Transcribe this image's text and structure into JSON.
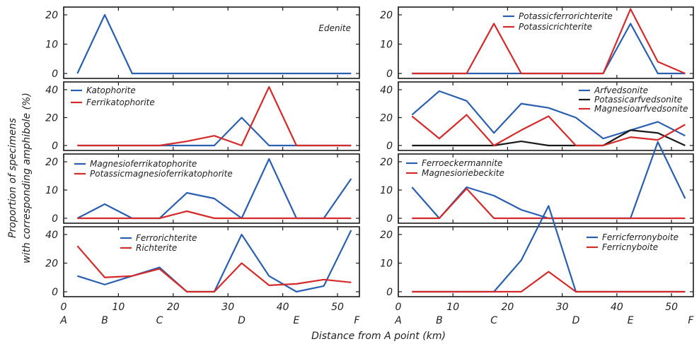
{
  "figure": {
    "ylabel_line1": "Proportion of specimens",
    "ylabel_line2": "with corresponding amphibole (%)",
    "xlabel": "Distance from A point (km)"
  },
  "chart_data": [
    {
      "type": "line",
      "id": "edenite",
      "column": 0,
      "row": 0,
      "x": [
        2.5,
        7.5,
        12.5,
        17.5,
        22.5,
        27.5,
        32.5,
        37.5,
        42.5,
        47.5,
        52.5
      ],
      "xlim": [
        0,
        54
      ],
      "ylim": [
        0,
        20
      ],
      "yticks": [
        0,
        10,
        20
      ],
      "xticks": [
        0,
        10,
        20,
        30,
        40,
        50
      ],
      "point_labels": [
        "A",
        "B",
        "C",
        "D",
        "E",
        "F"
      ],
      "series": [
        {
          "name": "Edenite",
          "color": "#2a5fb0",
          "values": [
            0,
            20,
            0,
            0,
            0,
            0,
            0,
            0,
            0,
            0,
            0
          ]
        }
      ]
    },
    {
      "type": "line",
      "id": "katophorite",
      "column": 0,
      "row": 1,
      "x": [
        2.5,
        7.5,
        12.5,
        17.5,
        22.5,
        27.5,
        32.5,
        37.5,
        42.5,
        47.5,
        52.5
      ],
      "xlim": [
        0,
        54
      ],
      "ylim": [
        0,
        40
      ],
      "yticks": [
        0,
        20,
        40
      ],
      "series": [
        {
          "name": "Katophorite",
          "color": "#2a5fb0",
          "values": [
            0,
            0,
            0,
            0,
            0,
            0,
            20,
            0,
            0,
            0,
            0
          ]
        },
        {
          "name": "Ferrikatophorite",
          "color": "#d42a2a",
          "values": [
            0,
            0,
            0,
            0,
            3,
            7,
            0,
            42,
            0,
            0,
            0
          ]
        }
      ]
    },
    {
      "type": "line",
      "id": "magnesioferrikatophorite",
      "column": 0,
      "row": 2,
      "x": [
        2.5,
        7.5,
        12.5,
        17.5,
        22.5,
        27.5,
        32.5,
        37.5,
        42.5,
        47.5,
        52.5
      ],
      "xlim": [
        0,
        54
      ],
      "ylim": [
        0,
        20
      ],
      "yticks": [
        0,
        10,
        20
      ],
      "series": [
        {
          "name": "Magnesioferrikatophorite",
          "color": "#2a5fb0",
          "values": [
            0,
            5,
            0,
            0,
            9,
            7,
            0,
            21,
            0,
            0,
            14
          ]
        },
        {
          "name": "Potassicmagnesioferrikatophorite",
          "color": "#d42a2a",
          "values": [
            0,
            0,
            0,
            0,
            2.5,
            0,
            0,
            0,
            0,
            0,
            0
          ]
        }
      ]
    },
    {
      "type": "line",
      "id": "ferrorichterite",
      "column": 0,
      "row": 3,
      "x": [
        2.5,
        7.5,
        12.5,
        17.5,
        22.5,
        27.5,
        32.5,
        37.5,
        42.5,
        47.5,
        52.5
      ],
      "xlim": [
        0,
        54
      ],
      "ylim": [
        0,
        40
      ],
      "yticks": [
        0,
        20,
        40
      ],
      "series": [
        {
          "name": "Ferrorichterite",
          "color": "#2a5fb0",
          "values": [
            11,
            5,
            11,
            17,
            0,
            0,
            40,
            11,
            0,
            4,
            43
          ]
        },
        {
          "name": "Richterite",
          "color": "#d42a2a",
          "values": [
            32,
            10,
            11,
            16,
            0,
            0,
            20,
            4.5,
            5.5,
            8.5,
            6.5
          ]
        }
      ]
    },
    {
      "type": "line",
      "id": "potassicferrorichterite",
      "column": 1,
      "row": 0,
      "x": [
        2.5,
        7.5,
        12.5,
        17.5,
        22.5,
        27.5,
        32.5,
        37.5,
        42.5,
        47.5,
        52.5
      ],
      "xlim": [
        0,
        54
      ],
      "ylim": [
        0,
        20
      ],
      "yticks": [
        0,
        10,
        20
      ],
      "series": [
        {
          "name": "Potassicferrorichterite",
          "color": "#2a5fb0",
          "values": [
            0,
            0,
            0,
            0,
            0,
            0,
            0,
            0,
            17,
            0,
            0
          ]
        },
        {
          "name": "Potassicrichterite",
          "color": "#d42a2a",
          "values": [
            0,
            0,
            0,
            17,
            0,
            0,
            0,
            0,
            22,
            4,
            0
          ]
        }
      ]
    },
    {
      "type": "line",
      "id": "arfvedsonite",
      "column": 1,
      "row": 1,
      "x": [
        2.5,
        7.5,
        12.5,
        17.5,
        22.5,
        27.5,
        32.5,
        37.5,
        42.5,
        47.5,
        52.5
      ],
      "xlim": [
        0,
        54
      ],
      "ylim": [
        0,
        40
      ],
      "yticks": [
        0,
        20,
        40
      ],
      "series": [
        {
          "name": "Arfvedsonite",
          "color": "#2a5fb0",
          "values": [
            22,
            39,
            32,
            9,
            30,
            27,
            20,
            5,
            11,
            17,
            7
          ]
        },
        {
          "name": "Potassicarfvedsonite",
          "color": "#1a1a1a",
          "values": [
            0,
            0,
            0,
            0,
            3,
            0,
            0,
            0,
            11,
            9,
            0
          ]
        },
        {
          "name": "Magnesioarfvedsonite",
          "color": "#d42a2a",
          "values": [
            21,
            5,
            22,
            0,
            11,
            21,
            0,
            0,
            6,
            4,
            15
          ]
        }
      ]
    },
    {
      "type": "line",
      "id": "ferroeckermannite",
      "column": 1,
      "row": 2,
      "x": [
        2.5,
        7.5,
        12.5,
        17.5,
        22.5,
        27.5,
        32.5,
        37.5,
        42.5,
        47.5,
        52.5
      ],
      "xlim": [
        0,
        54
      ],
      "ylim": [
        0,
        20
      ],
      "yticks": [
        0,
        10,
        20
      ],
      "series": [
        {
          "name": "Ferroeckermannite",
          "color": "#2a5fb0",
          "values": [
            11,
            0,
            11,
            8,
            3,
            0,
            0,
            0,
            0,
            27,
            7
          ]
        },
        {
          "name": "Magnesioriebeckite",
          "color": "#d42a2a",
          "values": [
            0,
            0,
            10.5,
            0,
            0,
            0,
            0,
            0,
            0,
            0,
            0
          ]
        }
      ]
    },
    {
      "type": "line",
      "id": "ferricferronyboite",
      "column": 1,
      "row": 3,
      "x": [
        2.5,
        7.5,
        12.5,
        17.5,
        22.5,
        27.5,
        32.5,
        37.5,
        42.5,
        47.5,
        52.5
      ],
      "xlim": [
        0,
        54
      ],
      "ylim": [
        0,
        20
      ],
      "yticks": [
        0,
        10,
        20
      ],
      "series": [
        {
          "name": "Ferricferronyboite",
          "color": "#2a5fb0",
          "values": [
            0,
            0,
            0,
            0,
            11,
            30,
            0,
            0,
            0,
            0,
            0
          ]
        },
        {
          "name": "Ferricnyboite",
          "color": "#d42a2a",
          "values": [
            0,
            0,
            0,
            0,
            0,
            7,
            0,
            0,
            0,
            0,
            0
          ]
        }
      ]
    }
  ]
}
